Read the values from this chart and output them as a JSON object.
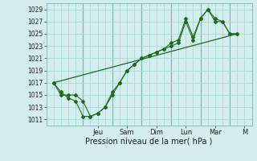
{
  "xlabel": "Pression niveau de la mer( hPa )",
  "background_color": "#d4eeee",
  "grid_color": "#a8d8d8",
  "line_color": "#1a6b1a",
  "yticks": [
    1011,
    1013,
    1015,
    1017,
    1019,
    1021,
    1023,
    1025,
    1027,
    1029
  ],
  "xlim": [
    0,
    14
  ],
  "ylim": [
    1010.0,
    1030.0
  ],
  "day_labels": [
    "Jeu",
    "Sam",
    "Dim",
    "Lun",
    "Mar",
    "M"
  ],
  "day_positions": [
    3.5,
    5.5,
    7.5,
    9.5,
    11.5,
    13.5
  ],
  "vline_positions": [
    2.5,
    4.5,
    6.5,
    8.5,
    10.5,
    12.5
  ],
  "line1_x": [
    0.5,
    1.0,
    1.5,
    2.0,
    2.5,
    3.0,
    3.5,
    4.0,
    4.5,
    5.0,
    5.5,
    6.0,
    6.5,
    7.0,
    7.5,
    8.0,
    8.5,
    9.0,
    9.5,
    10.0,
    10.5,
    11.0,
    11.5,
    12.0,
    12.5,
    13.0
  ],
  "line1_y": [
    1017,
    1015,
    1015,
    1015,
    1014,
    1011.5,
    1012,
    1013,
    1015,
    1017,
    1019,
    1020,
    1021,
    1021.5,
    1022,
    1022.5,
    1023,
    1023.5,
    1027,
    1024,
    1027.5,
    1029,
    1027.5,
    1027,
    1025,
    1025
  ],
  "line2_x": [
    0.5,
    1.0,
    1.5,
    2.0,
    2.5,
    3.0,
    3.5,
    4.0,
    4.5,
    5.0,
    5.5,
    6.0,
    6.5,
    7.0,
    7.5,
    8.0,
    8.5,
    9.0,
    9.5,
    10.0,
    10.5,
    11.0,
    11.5,
    12.0,
    12.5,
    13.0
  ],
  "line2_y": [
    1017,
    1015.5,
    1014.5,
    1014,
    1011.5,
    1011.5,
    1012,
    1013,
    1015.5,
    1017,
    1019,
    1020,
    1021,
    1021.5,
    1022,
    1022.5,
    1023.5,
    1024,
    1027.5,
    1024.5,
    1027.5,
    1029,
    1027,
    1027,
    1025,
    1025
  ],
  "line3_x": [
    0.5,
    13.0
  ],
  "line3_y": [
    1017,
    1025
  ],
  "figsize": [
    3.2,
    2.0
  ],
  "dpi": 100
}
